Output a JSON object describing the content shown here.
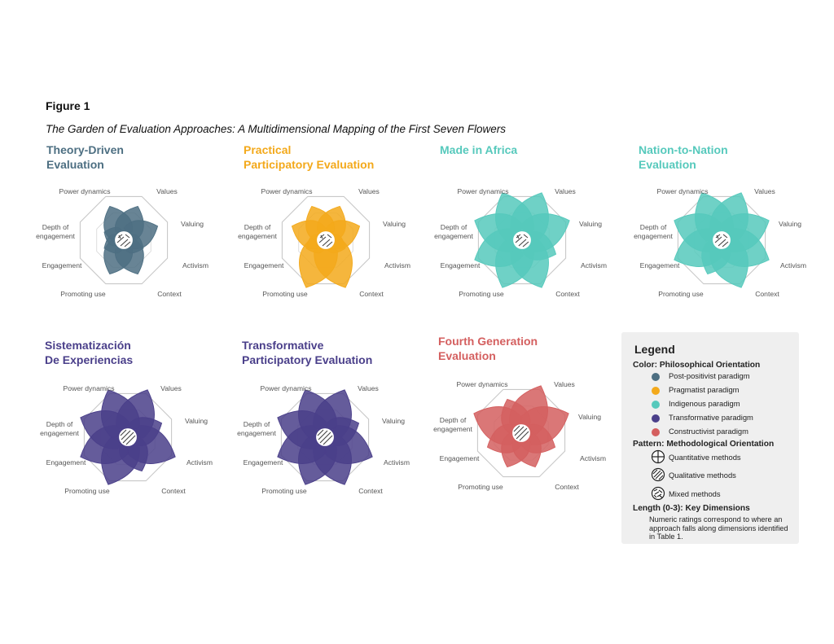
{
  "figure_label": "Figure 1",
  "figure_caption": "The Garden of Evaluation Approaches: A Multidimensional Mapping of the First Seven Flowers",
  "dimensions": [
    "Values",
    "Valuing",
    "Activism",
    "Context",
    "Promoting use",
    "Engagement",
    "Depth of engagement",
    "Power dynamics"
  ],
  "colors": {
    "post_positivist": "#4d6f82",
    "pragmatist": "#f3a91b",
    "indigenous": "#56c9bc",
    "transformative": "#4a3f8a",
    "constructivist": "#d45f5f"
  },
  "chart_data": {
    "type": "radar",
    "axes": [
      "Values",
      "Valuing",
      "Activism",
      "Context",
      "Promoting use",
      "Engagement",
      "Depth of engagement",
      "Power dynamics"
    ],
    "range": [
      0,
      3
    ],
    "flowers": [
      {
        "name": "Theory-Driven Evaluation",
        "title_lines": [
          "Theory-Driven",
          "Evaluation"
        ],
        "paradigm": "Post-positivist paradigm",
        "color": "#4d6f82",
        "pattern": "Mixed methods",
        "values": [
          2,
          2,
          1,
          2,
          2,
          1,
          1,
          2
        ]
      },
      {
        "name": "Practical Participatory Evaluation",
        "title_lines": [
          "Practical",
          "Participatory Evaluation"
        ],
        "paradigm": "Pragmatist paradigm",
        "color": "#f3a91b",
        "pattern": "Mixed methods",
        "values": [
          2,
          2,
          1,
          3,
          3,
          1,
          2,
          2
        ]
      },
      {
        "name": "Made in Africa",
        "title_lines": [
          "Made in Africa"
        ],
        "paradigm": "Indigenous paradigm",
        "color": "#56c9bc",
        "pattern": "Mixed methods",
        "values": [
          3,
          3,
          2,
          3,
          3,
          3,
          3,
          3
        ]
      },
      {
        "name": "Nation-to-Nation Evaluation",
        "title_lines": [
          "Nation-to-Nation",
          "Evaluation"
        ],
        "paradigm": "Indigenous paradigm",
        "color": "#56c9bc",
        "pattern": "Mixed methods",
        "values": [
          3,
          3,
          3,
          3,
          2,
          3,
          3,
          3
        ]
      },
      {
        "name": "Sistematización De Experiencias",
        "title_lines": [
          "Sistematización",
          "De Experiencias"
        ],
        "paradigm": "Transformative paradigm",
        "color": "#4a3f8a",
        "pattern": "Qualitative methods",
        "values": [
          3,
          2,
          3,
          2,
          3,
          3,
          3,
          3
        ]
      },
      {
        "name": "Transformative Participatory Evaluation",
        "title_lines": [
          "Transformative",
          "Participatory Evaluation"
        ],
        "paradigm": "Transformative paradigm",
        "color": "#4a3f8a",
        "pattern": "Qualitative methods",
        "values": [
          3,
          2,
          3,
          3,
          3,
          3,
          3,
          3
        ]
      },
      {
        "name": "Fourth Generation Evaluation",
        "title_lines": [
          "Fourth Generation",
          "Evaluation"
        ],
        "paradigm": "Constructivist paradigm",
        "color": "#d45f5f",
        "pattern": "Qualitative methods",
        "values": [
          3,
          3,
          2,
          2,
          2,
          2,
          3,
          2
        ]
      }
    ]
  },
  "legend": {
    "title": "Legend",
    "color_heading": "Color: Philosophical Orientation",
    "color_items": [
      {
        "label": "Post-positivist paradigm",
        "color": "#4d6f82"
      },
      {
        "label": "Pragmatist paradigm",
        "color": "#f3a91b"
      },
      {
        "label": "Indigenous paradigm",
        "color": "#56c9bc"
      },
      {
        "label": "Transformative paradigm",
        "color": "#4a3f8a"
      },
      {
        "label": "Constructivist paradigm",
        "color": "#d45f5f"
      }
    ],
    "pattern_heading": "Pattern: Methodological Orientation",
    "pattern_items": [
      {
        "label": "Quantitative methods",
        "icon": "grid-pattern-icon"
      },
      {
        "label": "Qualitative methods",
        "icon": "diagonal-pattern-icon"
      },
      {
        "label": "Mixed methods",
        "icon": "weave-pattern-icon"
      }
    ],
    "length_heading": "Length (0-3): Key Dimensions",
    "length_description": "Numeric ratings correspond to where an approach falls along dimensions identified in Table 1."
  }
}
